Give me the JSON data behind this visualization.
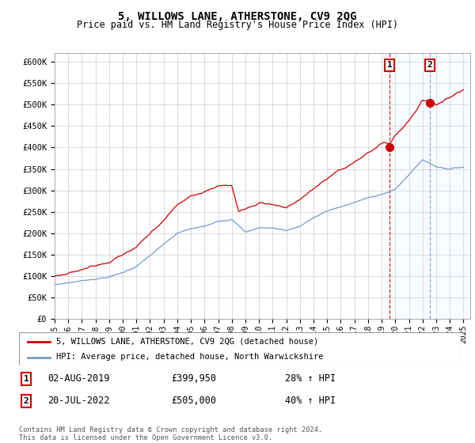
{
  "title": "5, WILLOWS LANE, ATHERSTONE, CV9 2QG",
  "subtitle": "Price paid vs. HM Land Registry's House Price Index (HPI)",
  "ylim": [
    0,
    620000
  ],
  "yticks": [
    0,
    50000,
    100000,
    150000,
    200000,
    250000,
    300000,
    350000,
    400000,
    450000,
    500000,
    550000,
    600000
  ],
  "ytick_labels": [
    "£0",
    "£50K",
    "£100K",
    "£150K",
    "£200K",
    "£250K",
    "£300K",
    "£350K",
    "£400K",
    "£450K",
    "£500K",
    "£550K",
    "£600K"
  ],
  "xlim_start": 1995.0,
  "xlim_end": 2025.5,
  "xticks": [
    1995,
    1996,
    1997,
    1998,
    1999,
    2000,
    2001,
    2002,
    2003,
    2004,
    2005,
    2006,
    2007,
    2008,
    2009,
    2010,
    2011,
    2012,
    2013,
    2014,
    2015,
    2016,
    2017,
    2018,
    2019,
    2020,
    2021,
    2022,
    2023,
    2024,
    2025
  ],
  "red_line_color": "#cc0000",
  "blue_line_color": "#7799cc",
  "purchase1_x": 2019.58,
  "purchase1_y": 399950,
  "purchase1_label": "1",
  "purchase1_date": "02-AUG-2019",
  "purchase1_price": "£399,950",
  "purchase1_hpi": "28% ↑ HPI",
  "purchase2_x": 2022.54,
  "purchase2_y": 505000,
  "purchase2_label": "2",
  "purchase2_date": "20-JUL-2022",
  "purchase2_price": "£505,000",
  "purchase2_hpi": "40% ↑ HPI",
  "legend_line1": "5, WILLOWS LANE, ATHERSTONE, CV9 2QG (detached house)",
  "legend_line2": "HPI: Average price, detached house, North Warwickshire",
  "footer": "Contains HM Land Registry data © Crown copyright and database right 2024.\nThis data is licensed under the Open Government Licence v3.0.",
  "background_color": "#ffffff",
  "grid_color": "#cccccc",
  "shaded_color": "#ddeeff"
}
